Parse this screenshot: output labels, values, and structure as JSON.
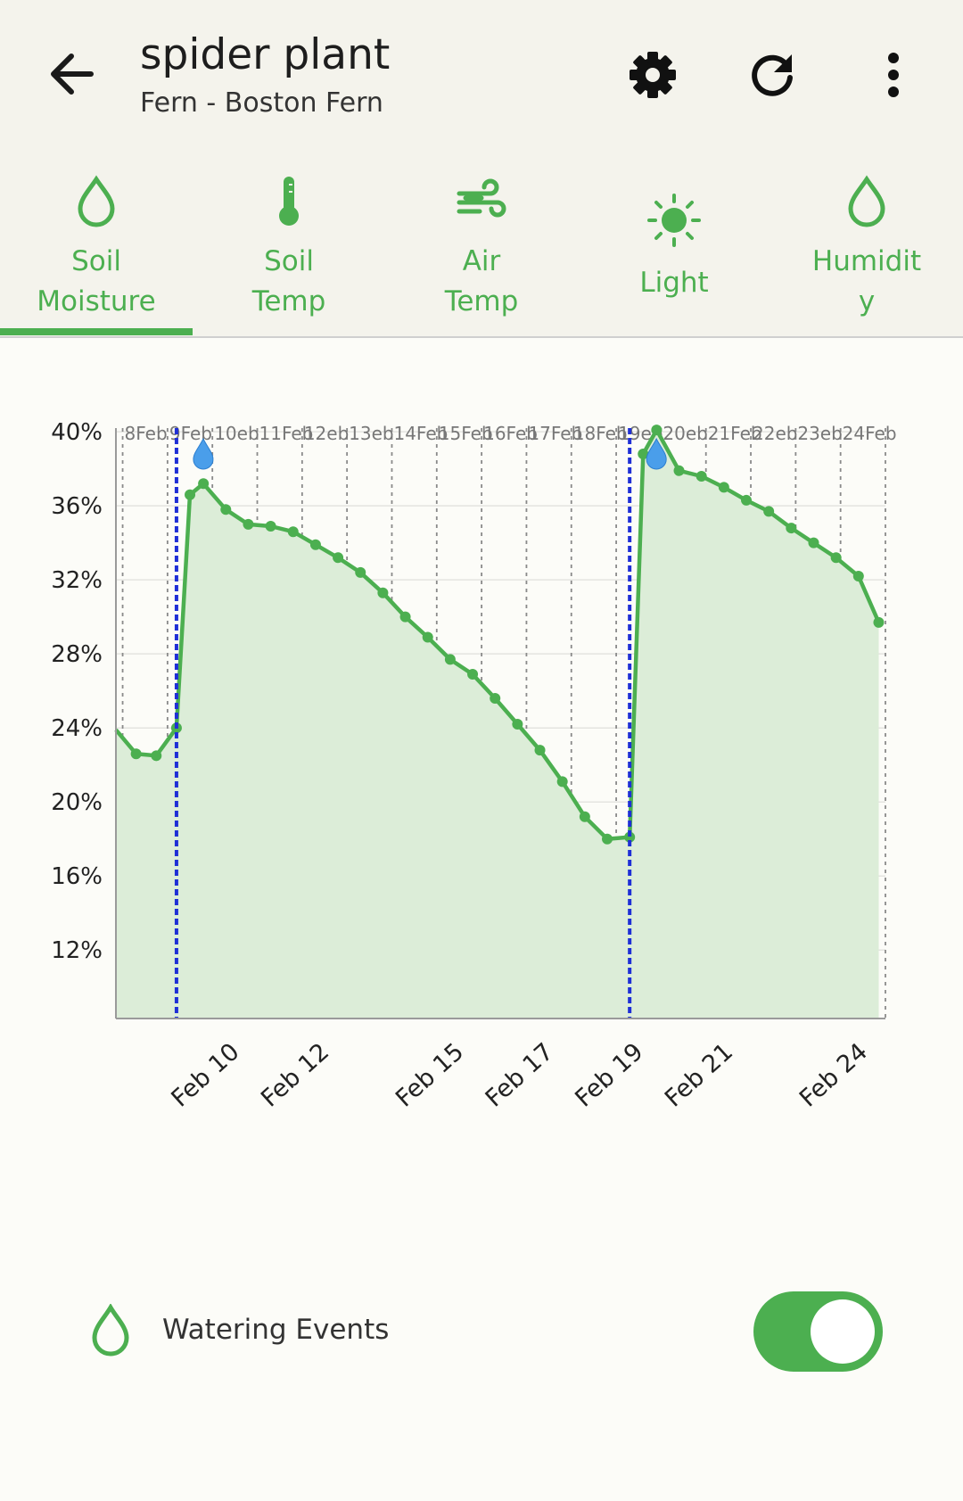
{
  "header": {
    "title": "spider plant",
    "subtitle": "Fern - Boston Fern",
    "icons": [
      "back-arrow-icon",
      "gear-icon",
      "refresh-icon",
      "more-vert-icon"
    ]
  },
  "tabs": [
    {
      "label_line1": "Soil",
      "label_line2": "Moisture",
      "icon": "water-drop-icon",
      "selected": true
    },
    {
      "label_line1": "Soil",
      "label_line2": "Temp",
      "icon": "thermometer-icon",
      "selected": false
    },
    {
      "label_line1": "Air",
      "label_line2": "Temp",
      "icon": "wind-icon",
      "selected": false
    },
    {
      "label_line1": "Light",
      "label_line2": "",
      "icon": "sun-icon",
      "selected": false
    },
    {
      "label_line1": "Humidit",
      "label_line2": "y",
      "icon": "water-drop-icon",
      "selected": false
    }
  ],
  "colors": {
    "accent": "#4caf50",
    "fill": "#dcedd8",
    "watering_line": "#1f2fd6",
    "background": "#fcfcf8",
    "header": "#f4f3ec"
  },
  "chart_data": {
    "type": "area",
    "ylabel": "",
    "xlabel": "",
    "yticks": [
      "40%",
      "36%",
      "32%",
      "28%",
      "24%",
      "20%",
      "16%",
      "12%"
    ],
    "ylim": [
      8.3,
      40.2
    ],
    "xlim": [
      7.85,
      25.0
    ],
    "top_tick_labels": [
      "8Feb",
      "9Feb",
      "10eb",
      "11Feb",
      "12eb",
      "13eb",
      "14Feb",
      "15Feb",
      "16Feb",
      "17Feb",
      "18Feb",
      "19eb",
      "20eb",
      "21Feb",
      "22eb",
      "23eb",
      "24Feb"
    ],
    "bottom_tick_labels": [
      {
        "x": 10.0,
        "label": "Feb 10"
      },
      {
        "x": 12.0,
        "label": "Feb 12"
      },
      {
        "x": 15.0,
        "label": "Feb 15"
      },
      {
        "x": 17.0,
        "label": "Feb 17"
      },
      {
        "x": 19.0,
        "label": "Feb 19"
      },
      {
        "x": 21.0,
        "label": "Feb 21"
      },
      {
        "x": 24.0,
        "label": "Feb 24"
      }
    ],
    "watering_events": [
      9.2,
      19.3
    ],
    "grid": true,
    "series": [
      {
        "x": [
          7.85,
          8.3,
          8.75,
          9.2,
          9.5,
          9.8,
          10.3,
          10.8,
          11.3,
          11.8,
          12.3,
          12.8,
          13.3,
          13.8,
          14.3,
          14.8,
          15.3,
          15.8,
          16.3,
          16.8,
          17.3,
          17.8,
          18.3,
          18.8,
          19.3,
          19.6,
          19.9,
          20.4,
          20.9,
          21.4,
          21.9,
          22.4,
          22.9,
          23.4,
          23.9,
          24.4,
          24.85
        ],
        "values": [
          23.9,
          22.6,
          22.5,
          24.0,
          36.6,
          37.2,
          35.8,
          35.0,
          34.9,
          34.6,
          33.9,
          33.2,
          32.4,
          31.3,
          30.0,
          28.9,
          27.7,
          26.9,
          25.6,
          24.2,
          22.8,
          21.1,
          19.2,
          18.0,
          18.1,
          38.8,
          40.1,
          37.9,
          37.6,
          37.0,
          36.3,
          35.7,
          34.8,
          34.0,
          33.2,
          32.2,
          29.7
        ]
      }
    ]
  },
  "legend": {
    "label": "Watering Events",
    "icon": "water-drop-icon",
    "toggle_on": true
  }
}
